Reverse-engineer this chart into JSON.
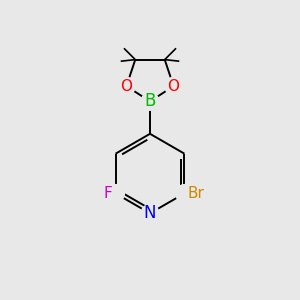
{
  "bg_color": "#e8e8e8",
  "bond_color": "#000000",
  "atom_colors": {
    "N": "#0000ee",
    "B": "#00bb00",
    "O": "#ff0000",
    "F": "#cc00cc",
    "Br": "#cc8800",
    "C": "#000000"
  },
  "font_size_atoms": 11,
  "lw": 1.4,
  "methyl_lw": 1.2
}
